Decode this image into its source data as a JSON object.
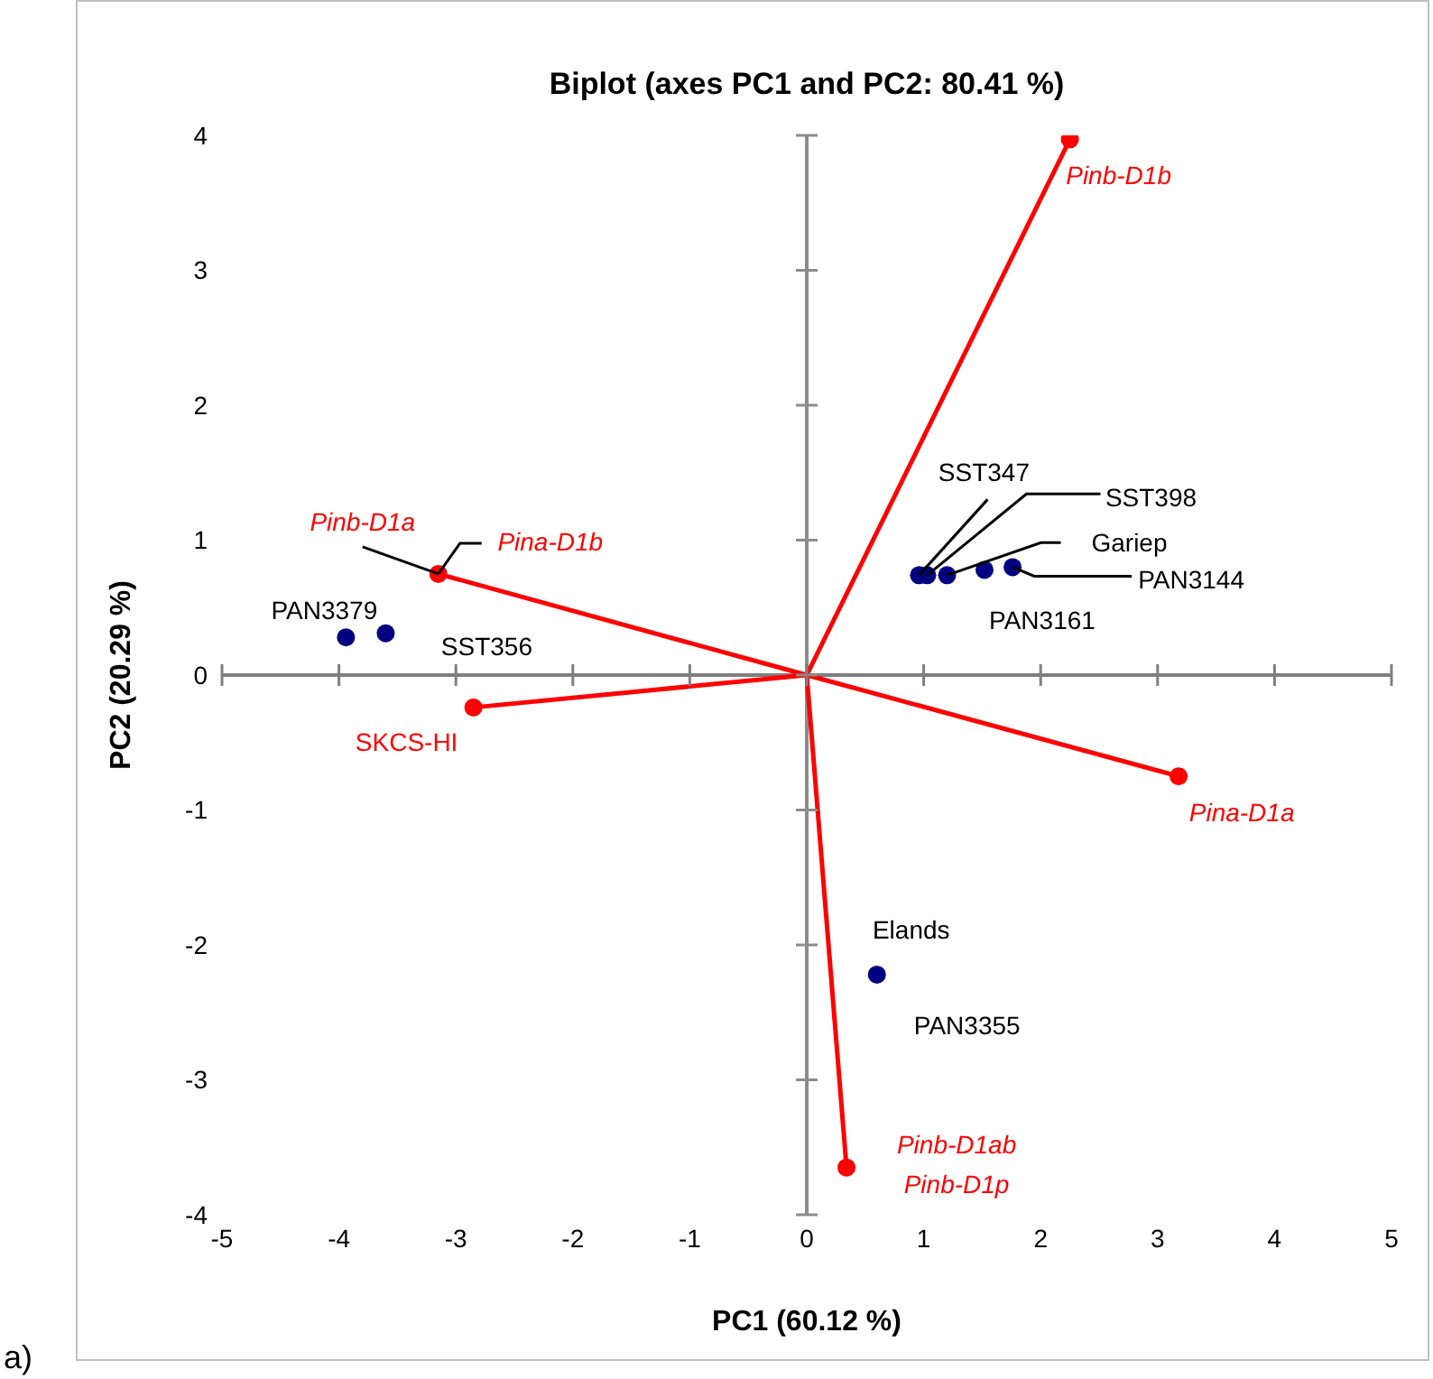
{
  "chart_data": {
    "type": "scatter",
    "title": "Biplot (axes PC1 and PC2: 80.41 %)",
    "xlabel": "PC1 (60.12 %)",
    "ylabel": "PC2 (20.29 %)",
    "xlim": [
      -5,
      5
    ],
    "xticks": [
      -5,
      -4,
      -3,
      -2,
      -1,
      0,
      1,
      2,
      3,
      4,
      5
    ],
    "ylim": [
      -4,
      4
    ],
    "yticks": [
      -4,
      -3,
      -2,
      -1,
      0,
      1,
      2,
      3,
      4
    ],
    "grid": false,
    "legend": false,
    "marker": "circle",
    "series": [
      {
        "color": "#000080",
        "x": [
          -3.94,
          -3.6,
          0.96,
          1.03,
          1.2,
          1.52,
          1.76,
          0.6
        ],
        "values": [
          0.28,
          0.31,
          0.74,
          0.74,
          0.74,
          0.78,
          0.8,
          -2.22
        ]
      },
      {
        "type": "line",
        "color": "#ff0000",
        "marker": "none",
        "x": [
          0,
          2.25,
          0,
          -3.15,
          0,
          -2.85,
          0,
          3.18,
          0,
          0.34
        ],
        "values": [
          0,
          3.97,
          0,
          0.75,
          0,
          -0.24,
          0,
          -0.75,
          0,
          -3.65
        ]
      },
      {
        "color": "#ff0000",
        "x": [
          2.25,
          -3.15,
          -2.85,
          3.18,
          0.34
        ],
        "values": [
          3.97,
          0.75,
          -0.24,
          -0.75,
          -3.65
        ]
      }
    ],
    "ref_lines": [
      {
        "axis": "x",
        "value": 0,
        "color": "#8c8c8c"
      },
      {
        "axis": "y",
        "value": 0,
        "color": "#7f7f7f"
      }
    ],
    "annotations": [
      {
        "text": "PAN3379",
        "x": -3.94,
        "y": 0.28
      },
      {
        "text": "SST356",
        "x": -3.6,
        "y": 0.31
      },
      {
        "text": "SST347",
        "x": 0.96,
        "y": 0.74
      },
      {
        "text": "SST398",
        "x": 1.03,
        "y": 0.74
      },
      {
        "text": "Gariep",
        "x": 1.2,
        "y": 0.74
      },
      {
        "text": "PAN3144",
        "x": 1.76,
        "y": 0.8
      },
      {
        "text": "PAN3161",
        "x": 1.52,
        "y": 0.78
      },
      {
        "text": "Elands",
        "x": 0.6,
        "y": -2.22
      },
      {
        "text": "PAN3355",
        "x": 0.6,
        "y": -2.22
      },
      {
        "text": "Pinb-D1b",
        "x": 2.25,
        "y": 3.97
      },
      {
        "text": "Pinb-D1a",
        "x": -3.15,
        "y": 0.75
      },
      {
        "text": "Pina-D1b",
        "x": -3.15,
        "y": 0.75
      },
      {
        "text": "SKCS-HI",
        "x": -2.85,
        "y": -0.24
      },
      {
        "text": "Pina-D1a",
        "x": 3.18,
        "y": -0.75
      },
      {
        "text": "Pinb-D1ab",
        "x": 0.34,
        "y": -3.65
      },
      {
        "text": "Pinb-D1p",
        "x": 0.34,
        "y": -3.65
      },
      "a)"
    ]
  }
}
